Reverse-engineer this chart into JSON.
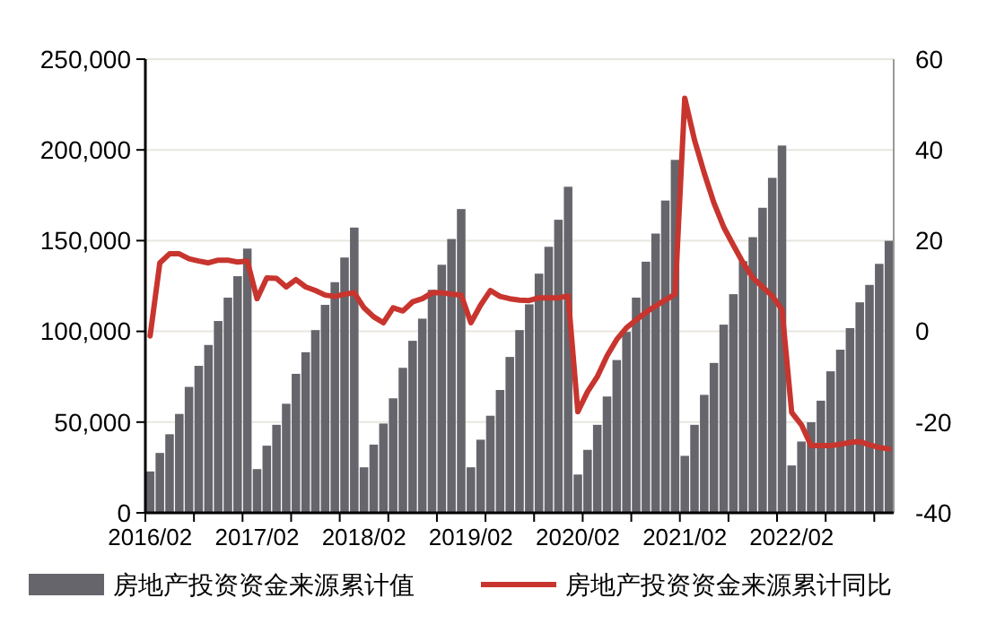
{
  "chart_data": {
    "type": "bar",
    "categories": [
      "2016/02",
      null,
      null,
      null,
      null,
      null,
      null,
      null,
      null,
      null,
      null,
      "2017/02",
      null,
      null,
      null,
      null,
      null,
      null,
      null,
      null,
      null,
      null,
      "2018/02",
      null,
      null,
      null,
      null,
      null,
      null,
      null,
      null,
      null,
      null,
      "2019/02",
      null,
      null,
      null,
      null,
      null,
      null,
      null,
      null,
      null,
      null,
      "2020/02",
      null,
      null,
      null,
      null,
      null,
      null,
      null,
      null,
      null,
      null,
      "2021/02",
      null,
      null,
      null,
      null,
      null,
      null,
      null,
      null,
      null,
      null,
      "2022/02",
      null,
      null,
      null,
      null,
      null,
      null,
      null,
      null,
      null,
      null
    ],
    "series": [
      {
        "name": "房地产投资资金来源累计值",
        "color": "#65656b",
        "values": [
          22800,
          33000,
          43300,
          54500,
          69400,
          81000,
          92500,
          105700,
          118600,
          130400,
          145600,
          24100,
          37000,
          48500,
          60100,
          76600,
          88500,
          100700,
          114600,
          127100,
          140700,
          157200,
          25100,
          37600,
          49200,
          63100,
          79900,
          94800,
          107000,
          122900,
          136700,
          150900,
          167400,
          25100,
          40300,
          53500,
          67700,
          85900,
          100700,
          114900,
          131800,
          146600,
          161500,
          179700,
          21100,
          34700,
          48500,
          64100,
          84200,
          99700,
          118600,
          138400,
          153900,
          172100,
          194500,
          31400,
          48500,
          65000,
          82600,
          103700,
          120500,
          138700,
          151900,
          168100,
          184600,
          202400,
          26100,
          39300,
          49900,
          61800,
          78000,
          89900,
          101800,
          116000,
          125600,
          137200,
          149900
        ]
      },
      {
        "name": "房地产投资资金来源累计同比",
        "type": "line",
        "axis": "y2",
        "color": "#c8352e",
        "values": [
          -1.0,
          15.1,
          17.1,
          17.1,
          16.0,
          15.5,
          15.1,
          15.7,
          15.7,
          15.3,
          15.5,
          7.2,
          11.8,
          11.7,
          9.8,
          11.4,
          9.8,
          9.0,
          8.0,
          7.7,
          8.2,
          8.5,
          5.2,
          3.2,
          1.9,
          5.2,
          4.5,
          6.5,
          7.2,
          8.5,
          8.5,
          8.2,
          8.0,
          1.9,
          5.8,
          9.0,
          7.7,
          7.2,
          6.9,
          6.8,
          7.4,
          7.4,
          7.4,
          7.8,
          -17.7,
          -13.3,
          -10.0,
          -5.4,
          -1.8,
          0.8,
          2.5,
          4.2,
          5.6,
          6.9,
          8.2,
          51.4,
          42.2,
          34.9,
          28.3,
          23.0,
          19.0,
          15.1,
          11.8,
          9.8,
          7.8,
          4.8,
          -17.9,
          -20.6,
          -25.2,
          -25.2,
          -25.2,
          -24.9,
          -24.5,
          -24.3,
          -25.0,
          -25.6,
          -25.9
        ]
      }
    ],
    "ylim": [
      0,
      250000
    ],
    "yticks": [
      {
        "value": 0,
        "label": "0"
      },
      {
        "value": 50000,
        "label": "50,000"
      },
      {
        "value": 100000,
        "label": "100,000"
      },
      {
        "value": 150000,
        "label": "150,000"
      },
      {
        "value": 200000,
        "label": "200,000"
      },
      {
        "value": 250000,
        "label": "250,000"
      }
    ],
    "y2lim": [
      -40,
      60
    ],
    "y2ticks": [
      -40,
      -20,
      0,
      20,
      40,
      60
    ],
    "grid": "y",
    "legend": "bottom",
    "marker": "none",
    "line_style": "solid"
  }
}
